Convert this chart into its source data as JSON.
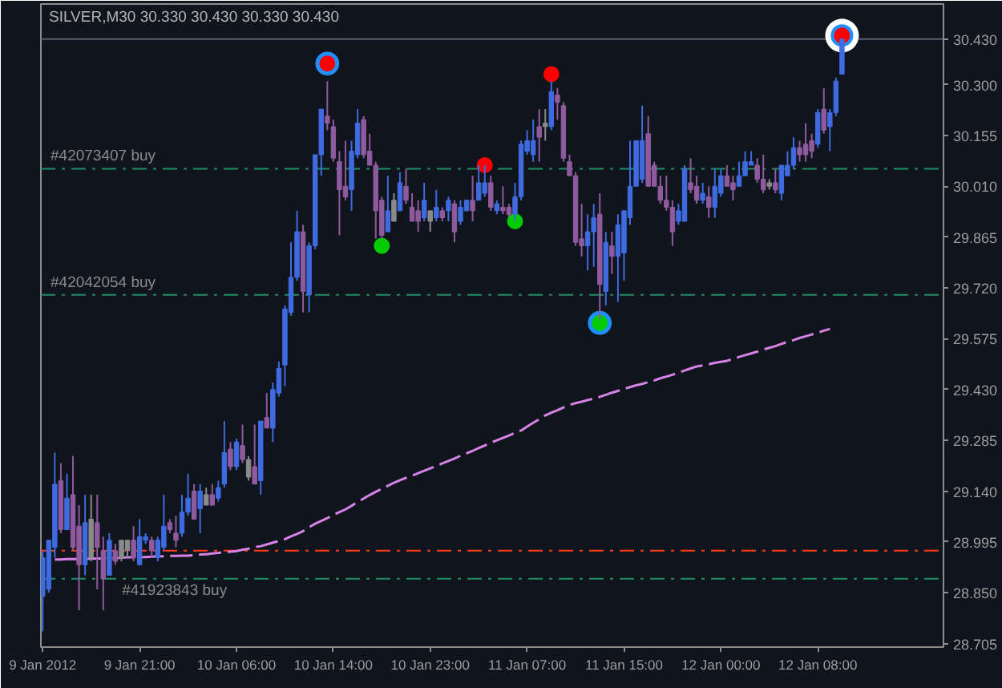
{
  "chart_data": {
    "type": "candlestick",
    "title": "SILVER,M30 30.330 30.430 30.330 30.430",
    "categories": [
      "9 Jan 2012",
      null,
      null,
      null,
      null,
      null,
      null,
      null,
      null,
      null,
      null,
      null,
      null,
      null,
      null,
      null,
      "9 Jan 21:00",
      null,
      null,
      null,
      null,
      null,
      null,
      null,
      null,
      null,
      null,
      null,
      null,
      null,
      null,
      null,
      "10 Jan 06:00",
      null,
      null,
      null,
      null,
      null,
      null,
      null,
      null,
      null,
      null,
      null,
      null,
      null,
      null,
      null,
      "10 Jan 14:00",
      null,
      null,
      null,
      null,
      null,
      null,
      null,
      null,
      null,
      null,
      null,
      null,
      null,
      null,
      null,
      "10 Jan 23:00",
      null,
      null,
      null,
      null,
      null,
      null,
      null,
      null,
      null,
      null,
      null,
      null,
      null,
      null,
      null,
      "11 Jan 07:00",
      null,
      null,
      null,
      null,
      null,
      null,
      null,
      null,
      null,
      null,
      null,
      null,
      null,
      null,
      null,
      "11 Jan 15:00",
      null,
      null,
      null,
      null,
      null,
      null,
      null,
      null,
      null,
      null,
      null,
      null,
      null,
      null,
      null,
      "12 Jan 00:00",
      null,
      null,
      null,
      null,
      null,
      null,
      null,
      null,
      null,
      null,
      null,
      null,
      null,
      null,
      null,
      "12 Jan 08:00",
      null,
      null,
      null,
      null
    ],
    "ylim": [
      28.695,
      30.53
    ],
    "yticks": [
      28.705,
      {
        "value": 28.85,
        "label": "28.850"
      },
      28.995,
      {
        "value": 29.14,
        "label": "29.140"
      },
      29.285,
      {
        "value": 29.43,
        "label": "29.430"
      },
      29.575,
      {
        "value": 29.72,
        "label": "29.720"
      },
      29.865,
      {
        "value": 30.01,
        "label": "30.010"
      },
      30.155,
      {
        "value": 30.3,
        "label": "30.300"
      }
    ],
    "grid": false,
    "ref_lines": [
      {
        "axis": "y",
        "value": 30.43,
        "label": "30.430",
        "color": "#596173",
        "line_style": "solid"
      },
      {
        "axis": "y",
        "value": 30.06,
        "label": "#42073407 buy",
        "color": "#1f8f62",
        "line_style": "dashdot"
      },
      {
        "axis": "y",
        "value": 29.7,
        "label": "#42042054 buy",
        "color": "#1f8f62",
        "line_style": "dashdot"
      },
      {
        "axis": "y",
        "value": 28.97,
        "color": "#ff3b14",
        "line_style": "dashdot"
      },
      {
        "axis": "y",
        "value": 28.89,
        "label": "#41923843 buy",
        "color": "#1f8f62",
        "line_style": "dashdot"
      }
    ],
    "series": [
      {
        "ohlc": [
          [
            28.84,
            28.97,
            28.74,
            28.95
          ],
          [
            28.86,
            29.0,
            28.85,
            29.0
          ],
          [
            28.98,
            29.25,
            28.95,
            29.16
          ],
          [
            29.17,
            29.22,
            29.02,
            29.03
          ],
          [
            29.03,
            29.19,
            29.03,
            29.12
          ],
          [
            29.13,
            29.24,
            28.97,
            28.98
          ],
          [
            29.04,
            29.1,
            28.8,
            28.93
          ],
          [
            28.93,
            29.13,
            28.9,
            29.05
          ],
          [
            29.06,
            29.13,
            28.94,
            28.95
          ],
          [
            29.05,
            29.13,
            28.86,
            28.98
          ],
          [
            28.97,
            29.01,
            28.8,
            28.89
          ],
          [
            28.9,
            29.02,
            28.9,
            29.0
          ],
          [
            28.97,
            28.99,
            28.93,
            28.94
          ],
          [
            29.0,
            29.0,
            28.94,
            28.95
          ],
          [
            29.0,
            29.0,
            28.95,
            28.97
          ],
          [
            29.0,
            29.04,
            28.94,
            28.95
          ],
          [
            28.93,
            29.06,
            28.93,
            29.01
          ],
          [
            29.0,
            29.02,
            28.99,
            29.01
          ],
          [
            29.0,
            29.01,
            28.95,
            28.97
          ],
          [
            28.95,
            29.01,
            28.94,
            29.0
          ],
          [
            28.98,
            29.13,
            28.97,
            29.04
          ],
          [
            29.05,
            29.06,
            29.02,
            29.03
          ],
          [
            29.02,
            29.07,
            28.98,
            29.0
          ],
          [
            29.02,
            29.13,
            29.01,
            29.08
          ],
          [
            29.08,
            29.19,
            29.07,
            29.12
          ],
          [
            29.14,
            29.16,
            29.06,
            29.06
          ],
          [
            29.09,
            29.16,
            29.02,
            29.14
          ],
          [
            29.13,
            29.15,
            29.1,
            29.1
          ],
          [
            29.13,
            29.16,
            29.1,
            29.1
          ],
          [
            29.12,
            29.17,
            29.11,
            29.15
          ],
          [
            29.16,
            29.34,
            29.15,
            29.25
          ],
          [
            29.26,
            29.28,
            29.2,
            29.21
          ],
          [
            29.21,
            29.29,
            29.2,
            29.28
          ],
          [
            29.27,
            29.33,
            29.22,
            29.23
          ],
          [
            29.23,
            29.24,
            29.17,
            29.18
          ],
          [
            29.21,
            29.33,
            29.16,
            29.16
          ],
          [
            29.17,
            29.34,
            29.13,
            29.34
          ],
          [
            29.35,
            29.42,
            29.32,
            29.32
          ],
          [
            29.32,
            29.45,
            29.28,
            29.43
          ],
          [
            29.42,
            29.51,
            29.41,
            29.49
          ],
          [
            29.5,
            29.67,
            29.44,
            29.66
          ],
          [
            29.65,
            29.85,
            29.64,
            29.75
          ],
          [
            29.75,
            29.94,
            29.74,
            29.88
          ],
          [
            29.88,
            29.9,
            29.65,
            29.71
          ],
          [
            29.7,
            29.85,
            29.65,
            29.84
          ],
          [
            29.84,
            30.1,
            29.83,
            30.1
          ],
          [
            30.1,
            30.23,
            30.04,
            30.23
          ],
          [
            30.21,
            30.31,
            30.17,
            30.19
          ],
          [
            30.18,
            30.2,
            30.08,
            30.09
          ],
          [
            30.08,
            30.11,
            29.87,
            30.0
          ],
          [
            30.01,
            30.14,
            29.97,
            29.98
          ],
          [
            30.0,
            30.14,
            29.94,
            30.11
          ],
          [
            30.1,
            30.23,
            30.09,
            30.19
          ],
          [
            30.2,
            30.21,
            30.09,
            30.1
          ],
          [
            30.11,
            30.16,
            30.07,
            30.07
          ],
          [
            30.07,
            30.08,
            29.86,
            29.94
          ],
          [
            29.97,
            29.98,
            29.86,
            29.87
          ],
          [
            29.88,
            30.04,
            29.88,
            29.94
          ],
          [
            29.97,
            29.99,
            29.91,
            29.91
          ],
          [
            29.94,
            30.05,
            29.94,
            30.02
          ],
          [
            30.01,
            30.06,
            29.96,
            29.97
          ],
          [
            29.95,
            29.99,
            29.91,
            29.91
          ],
          [
            29.94,
            29.97,
            29.88,
            29.91
          ],
          [
            29.92,
            30.02,
            29.91,
            29.97
          ],
          [
            29.94,
            29.94,
            29.88,
            29.91
          ],
          [
            29.92,
            30.0,
            29.91,
            29.95
          ],
          [
            29.94,
            29.95,
            29.91,
            29.92
          ],
          [
            29.94,
            29.98,
            29.91,
            29.97
          ],
          [
            29.96,
            29.97,
            29.85,
            29.88
          ],
          [
            29.91,
            29.97,
            29.9,
            29.95
          ],
          [
            29.94,
            29.97,
            29.94,
            29.97
          ],
          [
            29.97,
            30.04,
            29.91,
            29.94
          ],
          [
            29.97,
            30.07,
            29.97,
            30.02
          ],
          [
            29.99,
            30.07,
            29.98,
            30.02
          ],
          [
            30.02,
            30.04,
            29.94,
            29.95
          ],
          [
            29.94,
            29.97,
            29.93,
            29.96
          ],
          [
            29.95,
            30.01,
            29.93,
            29.94
          ],
          [
            29.95,
            29.96,
            29.92,
            29.93
          ],
          [
            29.93,
            30.02,
            29.91,
            29.98
          ],
          [
            29.98,
            30.14,
            29.97,
            30.13
          ],
          [
            30.11,
            30.17,
            30.1,
            30.14
          ],
          [
            30.1,
            30.2,
            30.08,
            30.14
          ],
          [
            30.18,
            30.23,
            30.08,
            30.15
          ],
          [
            30.19,
            30.23,
            30.14,
            30.18
          ],
          [
            30.18,
            30.31,
            30.17,
            30.28
          ],
          [
            30.27,
            30.29,
            30.2,
            30.25
          ],
          [
            30.24,
            30.25,
            30.08,
            30.09
          ],
          [
            30.08,
            30.1,
            30.04,
            30.04
          ],
          [
            30.04,
            30.05,
            29.84,
            29.85
          ],
          [
            29.86,
            29.96,
            29.81,
            29.84
          ],
          [
            29.84,
            29.93,
            29.77,
            29.88
          ],
          [
            29.88,
            29.96,
            29.78,
            29.92
          ],
          [
            29.93,
            29.99,
            29.63,
            29.73
          ],
          [
            29.71,
            29.88,
            29.67,
            29.85
          ],
          [
            29.84,
            29.88,
            29.76,
            29.81
          ],
          [
            29.81,
            29.93,
            29.68,
            29.9
          ],
          [
            29.82,
            29.94,
            29.74,
            29.94
          ],
          [
            29.92,
            30.14,
            29.9,
            30.01
          ],
          [
            30.01,
            30.14,
            30.01,
            30.14
          ],
          [
            30.03,
            30.24,
            30.02,
            30.14
          ],
          [
            30.16,
            30.21,
            30.01,
            30.01
          ],
          [
            30.07,
            30.08,
            30.01,
            30.01
          ],
          [
            30.01,
            30.04,
            29.96,
            29.97
          ],
          [
            29.97,
            30.04,
            29.94,
            29.95
          ],
          [
            29.95,
            29.97,
            29.84,
            29.88
          ],
          [
            29.91,
            29.96,
            29.9,
            29.94
          ],
          [
            29.91,
            30.07,
            29.91,
            30.06
          ],
          [
            30.02,
            30.09,
            29.99,
            30.0
          ],
          [
            30.01,
            30.04,
            29.96,
            29.97
          ],
          [
            29.97,
            30.02,
            29.96,
            29.99
          ],
          [
            29.98,
            30.01,
            29.92,
            29.95
          ],
          [
            29.95,
            30.06,
            29.92,
            30.01
          ],
          [
            29.99,
            30.06,
            29.98,
            30.04
          ],
          [
            30.04,
            30.07,
            30.01,
            30.01
          ],
          [
            30.02,
            30.04,
            29.97,
            30.0
          ],
          [
            30.01,
            30.08,
            30.01,
            30.04
          ],
          [
            30.04,
            30.11,
            30.04,
            30.08
          ],
          [
            30.07,
            30.11,
            30.07,
            30.08
          ],
          [
            30.07,
            30.09,
            30.02,
            30.03
          ],
          [
            30.03,
            30.1,
            29.99,
            30.0
          ],
          [
            30.02,
            30.03,
            30.0,
            30.01
          ],
          [
            30.02,
            30.06,
            29.99,
            30.0
          ],
          [
            29.99,
            30.07,
            29.97,
            30.07
          ],
          [
            30.04,
            30.11,
            30.04,
            30.07
          ],
          [
            30.07,
            30.15,
            30.06,
            30.12
          ],
          [
            30.12,
            30.14,
            30.08,
            30.1
          ],
          [
            30.13,
            30.19,
            30.08,
            30.1
          ],
          [
            30.14,
            30.16,
            30.09,
            30.11
          ],
          [
            30.13,
            30.23,
            30.12,
            30.22
          ],
          [
            30.23,
            30.29,
            30.16,
            30.17
          ],
          [
            30.18,
            30.23,
            30.11,
            30.22
          ],
          [
            30.22,
            30.32,
            30.21,
            30.31
          ],
          [
            30.33,
            30.43,
            30.33,
            30.43
          ]
        ],
        "colors": [
          "#3f6be0",
          "#3f6be0",
          "#3f6be0",
          "#8f5a9e",
          "#3f6be0",
          "#8f5a9e",
          "#8f5a9e",
          "#3f6be0",
          "#8a8a8a",
          "#8f5a9e",
          "#8f5a9e",
          "#3f6be0",
          "#8f5a9e",
          "#8a8a8a",
          "#8a8a8a",
          "#8f5a9e",
          "#3f6be0",
          "#3f6be0",
          "#8f5a9e",
          "#3f6be0",
          "#3f6be0",
          "#8f5a9e",
          "#8f5a9e",
          "#3f6be0",
          "#3f6be0",
          "#8f5a9e",
          "#3f6be0",
          "#8a8a8a",
          "#8f5a9e",
          "#3f6be0",
          "#3f6be0",
          "#8f5a9e",
          "#3f6be0",
          "#8f5a9e",
          "#8a8a8a",
          "#8f5a9e",
          "#3f6be0",
          "#8f5a9e",
          "#3f6be0",
          "#3f6be0",
          "#3f6be0",
          "#3f6be0",
          "#3f6be0",
          "#8f5a9e",
          "#3f6be0",
          "#3f6be0",
          "#3f6be0",
          "#8f5a9e",
          "#8f5a9e",
          "#8f5a9e",
          "#8f5a9e",
          "#3f6be0",
          "#3f6be0",
          "#8f5a9e",
          "#8f5a9e",
          "#8f5a9e",
          "#8f5a9e",
          "#3f6be0",
          "#8a8a8a",
          "#3f6be0",
          "#8f5a9e",
          "#8f5a9e",
          "#8f5a9e",
          "#3f6be0",
          "#8a8a8a",
          "#3f6be0",
          "#8f5a9e",
          "#3f6be0",
          "#8f5a9e",
          "#3f6be0",
          "#3f6be0",
          "#8f5a9e",
          "#3f6be0",
          "#3f6be0",
          "#8f5a9e",
          "#3f6be0",
          "#8f5a9e",
          "#8f5a9e",
          "#3f6be0",
          "#3f6be0",
          "#3f6be0",
          "#3f6be0",
          "#8f5a9e",
          "#8a8a8a",
          "#3f6be0",
          "#8f5a9e",
          "#8f5a9e",
          "#8f5a9e",
          "#8f5a9e",
          "#8f5a9e",
          "#3f6be0",
          "#3f6be0",
          "#8f5a9e",
          "#3f6be0",
          "#8f5a9e",
          "#3f6be0",
          "#3f6be0",
          "#3f6be0",
          "#3f6be0",
          "#3f6be0",
          "#8f5a9e",
          "#8f5a9e",
          "#8f5a9e",
          "#8f5a9e",
          "#8f5a9e",
          "#3f6be0",
          "#3f6be0",
          "#8f5a9e",
          "#8f5a9e",
          "#3f6be0",
          "#8f5a9e",
          "#3f6be0",
          "#3f6be0",
          "#8f5a9e",
          "#8f5a9e",
          "#3f6be0",
          "#3f6be0",
          "#3f6be0",
          "#8f5a9e",
          "#8f5a9e",
          "#8a8a8a",
          "#8f5a9e",
          "#3f6be0",
          "#3f6be0",
          "#3f6be0",
          "#8f5a9e",
          "#8f5a9e",
          "#8f5a9e",
          "#3f6be0",
          "#8f5a9e",
          "#3f6be0",
          "#3f6be0",
          "#3f6be0"
        ]
      },
      {
        "type": "line",
        "color": "#d782e6",
        "line_style": "dashed",
        "values": [
          null,
          null,
          28.945,
          28.945,
          28.946,
          28.946,
          28.946,
          28.947,
          28.947,
          28.948,
          28.948,
          28.949,
          28.949,
          28.95,
          28.951,
          28.951,
          28.952,
          28.952,
          28.953,
          28.954,
          28.954,
          28.955,
          28.955,
          28.956,
          28.956,
          28.957,
          28.959,
          28.96,
          28.962,
          28.964,
          28.966,
          28.967,
          28.969,
          28.973,
          28.976,
          28.98,
          28.983,
          28.988,
          28.993,
          28.998,
          29.003,
          29.011,
          29.018,
          29.026,
          29.037,
          29.047,
          29.055,
          29.063,
          29.072,
          29.08,
          29.088,
          29.098,
          29.109,
          29.119,
          29.129,
          29.138,
          29.147,
          29.155,
          29.164,
          29.171,
          29.178,
          29.184,
          29.191,
          29.198,
          29.205,
          29.212,
          29.219,
          29.226,
          29.233,
          29.241,
          29.248,
          29.255,
          29.263,
          29.27,
          29.278,
          29.285,
          29.292,
          29.299,
          29.306,
          29.313,
          29.324,
          29.335,
          29.345,
          29.356,
          29.364,
          29.371,
          29.379,
          29.386,
          29.391,
          29.395,
          29.4,
          29.404,
          29.409,
          29.415,
          29.421,
          29.426,
          29.432,
          29.437,
          29.442,
          29.446,
          29.451,
          29.456,
          29.462,
          29.467,
          29.472,
          29.478,
          29.484,
          29.49,
          29.496,
          29.499,
          29.502,
          29.506,
          29.509,
          29.512,
          29.517,
          29.523,
          29.528,
          29.533,
          29.538,
          29.544,
          29.549,
          29.554,
          29.56,
          29.566,
          29.571,
          29.577,
          29.582,
          29.587,
          29.592,
          29.598,
          29.603,
          null,
          null
        ]
      },
      {
        "type": "bubble",
        "color": "#ffffff",
        "values": [
          null,
          null,
          null,
          null,
          null,
          null,
          null,
          null,
          null,
          null,
          null,
          null,
          null,
          null,
          null,
          null,
          null,
          null,
          null,
          null,
          null,
          null,
          null,
          null,
          null,
          null,
          null,
          null,
          null,
          null,
          null,
          null,
          null,
          null,
          null,
          null,
          null,
          null,
          null,
          null,
          null,
          null,
          null,
          null,
          null,
          null,
          null,
          null,
          null,
          null,
          null,
          null,
          null,
          null,
          null,
          null,
          null,
          null,
          null,
          null,
          null,
          null,
          null,
          null,
          null,
          null,
          null,
          null,
          null,
          null,
          null,
          null,
          null,
          null,
          null,
          null,
          null,
          null,
          null,
          null,
          null,
          null,
          null,
          null,
          null,
          null,
          null,
          null,
          null,
          null,
          null,
          null,
          null,
          null,
          null,
          null,
          null,
          null,
          null,
          null,
          null,
          null,
          null,
          null,
          null,
          null,
          null,
          null,
          null,
          null,
          null,
          null,
          null,
          null,
          null,
          null,
          null,
          null,
          null,
          null,
          null,
          null,
          null,
          null,
          null,
          null,
          null,
          null,
          null,
          null,
          null,
          null,
          30.44
        ],
        "sizes": [
          null,
          null,
          null,
          null,
          null,
          null,
          null,
          null,
          null,
          null,
          null,
          null,
          null,
          null,
          null,
          null,
          null,
          null,
          null,
          null,
          null,
          null,
          null,
          null,
          null,
          null,
          null,
          null,
          null,
          null,
          null,
          null,
          null,
          null,
          null,
          null,
          null,
          null,
          null,
          null,
          null,
          null,
          null,
          null,
          null,
          null,
          null,
          null,
          null,
          null,
          null,
          null,
          null,
          null,
          null,
          null,
          null,
          null,
          null,
          null,
          null,
          null,
          null,
          null,
          null,
          null,
          null,
          null,
          null,
          null,
          null,
          null,
          null,
          null,
          null,
          null,
          null,
          null,
          null,
          null,
          null,
          null,
          null,
          null,
          null,
          null,
          null,
          null,
          null,
          null,
          null,
          null,
          null,
          null,
          null,
          null,
          null,
          null,
          null,
          null,
          null,
          null,
          null,
          null,
          null,
          null,
          null,
          null,
          null,
          null,
          null,
          null,
          null,
          null,
          null,
          null,
          null,
          null,
          null,
          null,
          null,
          null,
          null,
          null,
          null,
          null,
          null,
          null,
          null,
          null,
          null,
          null,
          1
        ]
      },
      {
        "type": "bubble",
        "color": "#1e90ff",
        "values": [
          null,
          null,
          null,
          null,
          null,
          null,
          null,
          null,
          null,
          null,
          null,
          null,
          null,
          null,
          null,
          null,
          null,
          null,
          null,
          null,
          null,
          null,
          null,
          null,
          null,
          null,
          null,
          null,
          null,
          null,
          null,
          null,
          null,
          null,
          null,
          null,
          null,
          null,
          null,
          null,
          null,
          null,
          null,
          null,
          null,
          null,
          null,
          30.36,
          null,
          null,
          null,
          null,
          null,
          null,
          null,
          null,
          null,
          null,
          null,
          null,
          null,
          null,
          null,
          null,
          null,
          null,
          null,
          null,
          null,
          null,
          null,
          null,
          null,
          null,
          null,
          null,
          null,
          null,
          null,
          null,
          null,
          null,
          null,
          null,
          null,
          null,
          null,
          null,
          null,
          null,
          null,
          null,
          29.62,
          null,
          null,
          null,
          null,
          null,
          null,
          null,
          null,
          null,
          null,
          null,
          null,
          null,
          null,
          null,
          null,
          null,
          null,
          null,
          null,
          null,
          null,
          null,
          null,
          null,
          null,
          null,
          null,
          null,
          null,
          null,
          null,
          null,
          null,
          null,
          null,
          null,
          null,
          null,
          30.44
        ],
        "sizes": [
          null,
          null,
          null,
          null,
          null,
          null,
          null,
          null,
          null,
          null,
          null,
          null,
          null,
          null,
          null,
          null,
          null,
          null,
          null,
          null,
          null,
          null,
          null,
          null,
          null,
          null,
          null,
          null,
          null,
          null,
          null,
          null,
          null,
          null,
          null,
          null,
          null,
          null,
          null,
          null,
          null,
          null,
          null,
          null,
          null,
          null,
          null,
          0.5,
          null,
          null,
          null,
          null,
          null,
          null,
          null,
          null,
          null,
          null,
          null,
          null,
          null,
          null,
          null,
          null,
          null,
          null,
          null,
          null,
          null,
          null,
          null,
          null,
          null,
          null,
          null,
          null,
          null,
          null,
          null,
          null,
          null,
          null,
          null,
          null,
          null,
          null,
          null,
          null,
          null,
          null,
          null,
          null,
          0.5,
          null,
          null,
          null,
          null,
          null,
          null,
          null,
          null,
          null,
          null,
          null,
          null,
          null,
          null,
          null,
          null,
          null,
          null,
          null,
          null,
          null,
          null,
          null,
          null,
          null,
          null,
          null,
          null,
          null,
          null,
          null,
          null,
          null,
          null,
          null,
          null,
          null,
          null,
          null,
          0.45
        ]
      },
      {
        "type": "scatter",
        "color": "#ff0000",
        "marker": "circle",
        "values": [
          null,
          null,
          null,
          null,
          null,
          null,
          null,
          null,
          null,
          null,
          null,
          null,
          null,
          null,
          null,
          null,
          null,
          null,
          null,
          null,
          null,
          null,
          null,
          null,
          null,
          null,
          null,
          null,
          null,
          null,
          null,
          null,
          null,
          null,
          null,
          null,
          null,
          null,
          null,
          null,
          null,
          null,
          null,
          null,
          null,
          null,
          null,
          30.36,
          null,
          null,
          null,
          null,
          null,
          null,
          null,
          null,
          null,
          null,
          null,
          null,
          null,
          null,
          null,
          null,
          null,
          null,
          null,
          null,
          null,
          null,
          null,
          null,
          null,
          30.07,
          null,
          null,
          null,
          null,
          null,
          null,
          null,
          null,
          null,
          null,
          30.33,
          null,
          null,
          null,
          null,
          null,
          null,
          null,
          null,
          null,
          null,
          null,
          null,
          null,
          null,
          null,
          null,
          null,
          null,
          null,
          null,
          null,
          null,
          null,
          null,
          null,
          null,
          null,
          null,
          null,
          null,
          null,
          null,
          null,
          null,
          null,
          null,
          null,
          null,
          null,
          null,
          null,
          null,
          null,
          null,
          null,
          null,
          null,
          30.44
        ]
      },
      {
        "type": "scatter",
        "color": "#00cc00",
        "marker": "circle",
        "values": [
          null,
          null,
          null,
          null,
          null,
          null,
          null,
          null,
          null,
          null,
          null,
          null,
          null,
          null,
          null,
          null,
          null,
          null,
          null,
          null,
          null,
          null,
          null,
          null,
          null,
          null,
          null,
          null,
          null,
          null,
          null,
          null,
          null,
          null,
          null,
          null,
          null,
          null,
          null,
          null,
          null,
          null,
          null,
          null,
          null,
          null,
          null,
          null,
          null,
          null,
          null,
          null,
          null,
          null,
          null,
          null,
          29.84,
          null,
          null,
          null,
          null,
          null,
          null,
          null,
          null,
          null,
          null,
          null,
          null,
          null,
          null,
          null,
          null,
          null,
          null,
          null,
          null,
          null,
          29.91,
          null,
          null,
          null,
          null,
          null,
          null,
          null,
          null,
          null,
          null,
          null,
          null,
          null,
          29.62,
          null,
          null,
          null,
          null,
          null,
          null,
          null,
          null,
          null,
          null,
          null,
          null,
          null,
          null,
          null,
          null,
          null,
          null,
          null,
          null,
          null,
          null,
          null,
          null,
          null,
          null,
          null,
          null,
          null,
          null,
          null,
          null,
          null,
          null,
          null,
          null,
          null,
          null,
          null,
          null
        ]
      }
    ]
  }
}
